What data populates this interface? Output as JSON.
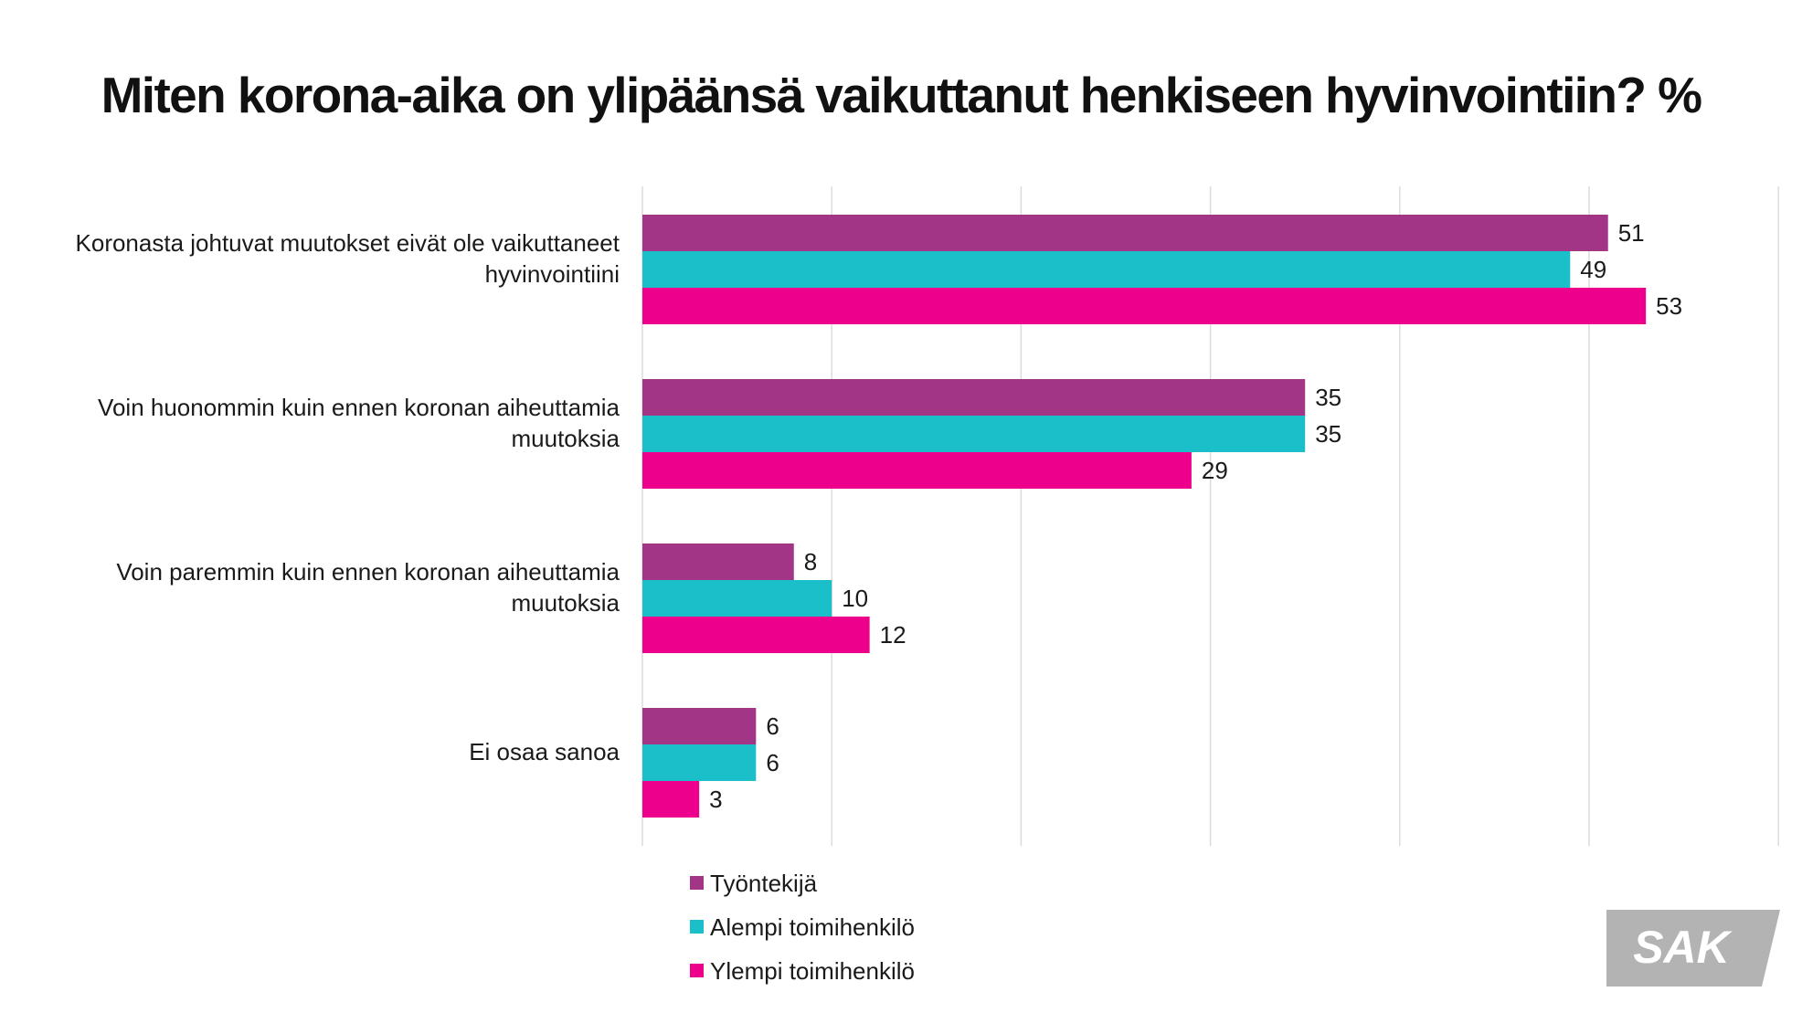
{
  "chart_data": {
    "type": "bar",
    "orientation": "horizontal",
    "title": "Miten korona-aika on ylipäänsä vaikuttanut henkiseen hyvinvointiin? %",
    "categories": [
      [
        "Koronasta johtuvat muutokset eivät ole vaikuttaneet",
        "hyvinvointiini"
      ],
      [
        "Voin huonommin kuin ennen koronan aiheuttamia",
        "muutoksia"
      ],
      [
        "Voin paremmin kuin ennen koronan aiheuttamia",
        "muutoksia"
      ],
      [
        "Ei osaa sanoa"
      ]
    ],
    "series": [
      {
        "name": "Työntekijä",
        "color": "#a23585",
        "values": [
          51,
          35,
          8,
          6
        ]
      },
      {
        "name": "Alempi toimihenkilö",
        "color": "#1bbfca",
        "values": [
          49,
          35,
          10,
          6
        ]
      },
      {
        "name": "Ylempi toimihenkilö",
        "color": "#ec008c",
        "values": [
          53,
          29,
          12,
          3
        ]
      }
    ],
    "xlim": [
      0,
      60
    ],
    "x_gridlines": [
      0,
      10,
      20,
      30,
      40,
      50,
      60
    ],
    "legend_position": "bottom-left",
    "grid": true
  },
  "logo": {
    "text": "SAK",
    "color": "#b3b3b3"
  }
}
